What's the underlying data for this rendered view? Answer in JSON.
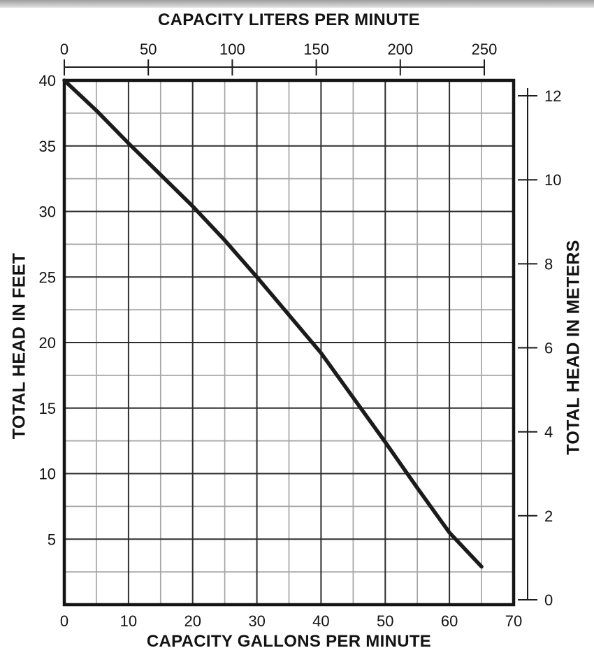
{
  "chart_data": {
    "type": "line",
    "axes": {
      "top": {
        "label": "CAPACITY LITERS PER MINUTE",
        "ticks": [
          0,
          50,
          100,
          150,
          200,
          250
        ],
        "range": [
          0,
          250
        ]
      },
      "bottom": {
        "label": "CAPACITY GALLONS PER MINUTE",
        "ticks": [
          0,
          10,
          20,
          30,
          40,
          50,
          60,
          70
        ],
        "minor_step": 5,
        "range": [
          0,
          70
        ]
      },
      "left": {
        "label": "TOTAL HEAD IN FEET",
        "ticks": [
          40,
          35,
          30,
          25,
          20,
          15,
          10,
          5
        ],
        "minor_step": 2.5,
        "range": [
          0,
          40
        ]
      },
      "right": {
        "label": "TOTAL HEAD IN METERS",
        "ticks": [
          12,
          10,
          8,
          6,
          4,
          2,
          0
        ],
        "range": [
          0,
          12
        ]
      }
    },
    "grid": {
      "major": true,
      "minor": true
    },
    "series": [
      {
        "name": "pump-head-capacity-curve",
        "x_gpm": [
          0,
          5,
          10,
          15,
          20,
          25,
          30,
          35,
          40,
          45,
          50,
          55,
          60,
          65
        ],
        "y_feet": [
          40,
          37.7,
          35.2,
          32.8,
          30.4,
          27.8,
          25,
          22.1,
          19.2,
          15.8,
          12.4,
          8.9,
          5.5,
          2.9
        ]
      }
    ],
    "colors": {
      "curve": "#1b1b1b",
      "major_grid": "#2e2e2e",
      "minor_grid": "#a5a5a5",
      "border": "#141414",
      "axis": "#1c1c1c",
      "text": "#131313"
    },
    "legend": "none"
  }
}
